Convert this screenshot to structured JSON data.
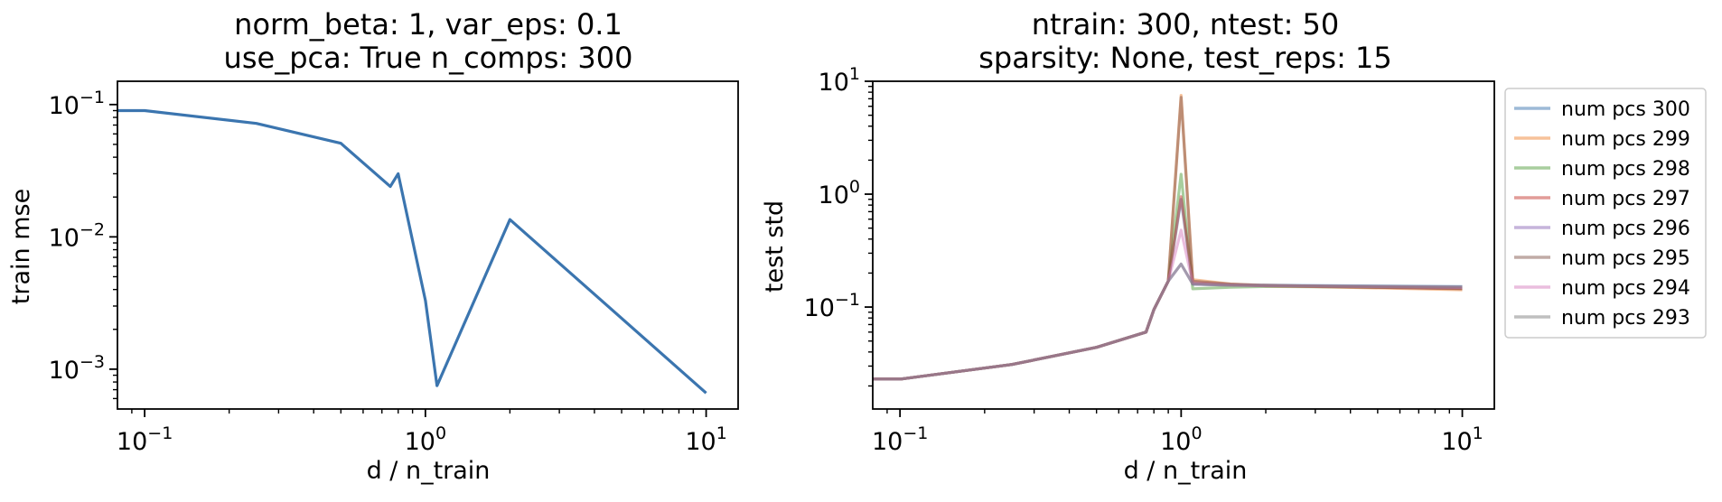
{
  "chart_data": [
    {
      "type": "line",
      "title_lines": [
        "norm_beta: 1, var_eps: 0.1",
        "use_pca: True n_comps: 300"
      ],
      "xlabel": "d / n_train",
      "ylabel": "train mse",
      "xscale": "log",
      "yscale": "log",
      "xlim": [
        0.08,
        13
      ],
      "ylim": [
        0.0005,
        0.15
      ],
      "x_ticks": [
        {
          "value": 0.1,
          "base": "10",
          "exp": "−1"
        },
        {
          "value": 1,
          "base": "10",
          "exp": "0"
        },
        {
          "value": 10,
          "base": "10",
          "exp": "1"
        }
      ],
      "y_ticks": [
        {
          "value": 0.001,
          "base": "10",
          "exp": "−3"
        },
        {
          "value": 0.01,
          "base": "10",
          "exp": "−2"
        },
        {
          "value": 0.1,
          "base": "10",
          "exp": "−1"
        }
      ],
      "grid": false,
      "series": [
        {
          "color": "#3b75af",
          "opacity": 1,
          "x": [
            0.08,
            0.1,
            0.25,
            0.5,
            0.75,
            0.8,
            1.0,
            1.1,
            2.0,
            10
          ],
          "y": [
            0.09,
            0.09,
            0.072,
            0.051,
            0.024,
            0.03,
            0.0033,
            0.00075,
            0.0135,
            0.00066
          ]
        }
      ]
    },
    {
      "type": "line",
      "title_lines": [
        "ntrain: 300, ntest: 50",
        "sparsity: None, test_reps: 15"
      ],
      "xlabel": "d / n_train",
      "ylabel": "test std",
      "xscale": "log",
      "yscale": "log",
      "xlim": [
        0.08,
        13
      ],
      "ylim": [
        0.0125,
        10
      ],
      "x_ticks": [
        {
          "value": 0.1,
          "base": "10",
          "exp": "−1"
        },
        {
          "value": 1,
          "base": "10",
          "exp": "0"
        },
        {
          "value": 10,
          "base": "10",
          "exp": "1"
        }
      ],
      "y_ticks": [
        {
          "value": 0.1,
          "base": "10",
          "exp": "−1"
        },
        {
          "value": 1,
          "base": "10",
          "exp": "0"
        },
        {
          "value": 10,
          "base": "10",
          "exp": "1"
        }
      ],
      "grid": false,
      "legend_position": "outside-right",
      "series": [
        {
          "name": "num pcs 300",
          "color": "#3b75af",
          "opacity": 0.5,
          "x": [
            0.08,
            0.1,
            0.25,
            0.5,
            0.75,
            0.8,
            0.9,
            1.0,
            1.1,
            1.5,
            2.0,
            10
          ],
          "y": [
            0.023,
            0.023,
            0.031,
            0.044,
            0.06,
            0.095,
            0.17,
            0.9,
            0.16,
            0.157,
            0.156,
            0.152
          ]
        },
        {
          "name": "num pcs 299",
          "color": "#ef8636",
          "opacity": 0.5,
          "x": [
            0.08,
            0.1,
            0.25,
            0.5,
            0.75,
            0.8,
            0.9,
            1.0,
            1.1,
            1.5,
            2.0,
            10
          ],
          "y": [
            0.023,
            0.023,
            0.031,
            0.044,
            0.06,
            0.095,
            0.17,
            7.5,
            0.175,
            0.16,
            0.155,
            0.142
          ]
        },
        {
          "name": "num pcs 298",
          "color": "#519e3e",
          "opacity": 0.5,
          "x": [
            0.08,
            0.1,
            0.25,
            0.5,
            0.75,
            0.8,
            0.9,
            1.0,
            1.1,
            1.5,
            2.0,
            10
          ],
          "y": [
            0.023,
            0.023,
            0.031,
            0.044,
            0.06,
            0.095,
            0.17,
            1.5,
            0.145,
            0.15,
            0.152,
            0.148
          ]
        },
        {
          "name": "num pcs 297",
          "color": "#c53a32",
          "opacity": 0.5,
          "x": [
            0.08,
            0.1,
            0.25,
            0.5,
            0.75,
            0.8,
            0.9,
            1.0,
            1.1,
            1.5,
            2.0,
            10
          ],
          "y": [
            0.023,
            0.023,
            0.031,
            0.044,
            0.06,
            0.095,
            0.17,
            0.95,
            0.165,
            0.158,
            0.154,
            0.146
          ]
        },
        {
          "name": "num pcs 296",
          "color": "#8d69b8",
          "opacity": 0.5,
          "x": [
            0.08,
            0.1,
            0.25,
            0.5,
            0.75,
            0.8,
            0.9,
            1.0,
            1.1,
            1.5,
            2.0,
            10
          ],
          "y": [
            0.023,
            0.023,
            0.031,
            0.044,
            0.06,
            0.095,
            0.17,
            0.24,
            0.16,
            0.156,
            0.155,
            0.15
          ]
        },
        {
          "name": "num pcs 295",
          "color": "#84584e",
          "opacity": 0.5,
          "x": [
            0.08,
            0.1,
            0.25,
            0.5,
            0.75,
            0.8,
            0.9,
            1.0,
            1.1,
            1.5,
            2.0,
            10
          ],
          "y": [
            0.023,
            0.023,
            0.031,
            0.044,
            0.06,
            0.095,
            0.17,
            7.2,
            0.17,
            0.16,
            0.156,
            0.145
          ]
        },
        {
          "name": "num pcs 294",
          "color": "#d57dbe",
          "opacity": 0.5,
          "x": [
            0.08,
            0.1,
            0.25,
            0.5,
            0.75,
            0.8,
            0.9,
            1.0,
            1.1,
            1.5,
            2.0,
            10
          ],
          "y": [
            0.023,
            0.023,
            0.031,
            0.044,
            0.06,
            0.095,
            0.17,
            0.48,
            0.162,
            0.157,
            0.155,
            0.149
          ]
        },
        {
          "name": "num pcs 293",
          "color": "#7f7f7f",
          "opacity": 0.5,
          "x": [
            0.08,
            0.1,
            0.25,
            0.5,
            0.75,
            0.8,
            0.9,
            1.0,
            1.1,
            1.5,
            2.0,
            10
          ],
          "y": [
            0.023,
            0.023,
            0.031,
            0.044,
            0.06,
            0.095,
            0.17,
            0.24,
            0.16,
            0.156,
            0.155,
            0.151
          ]
        }
      ]
    }
  ]
}
